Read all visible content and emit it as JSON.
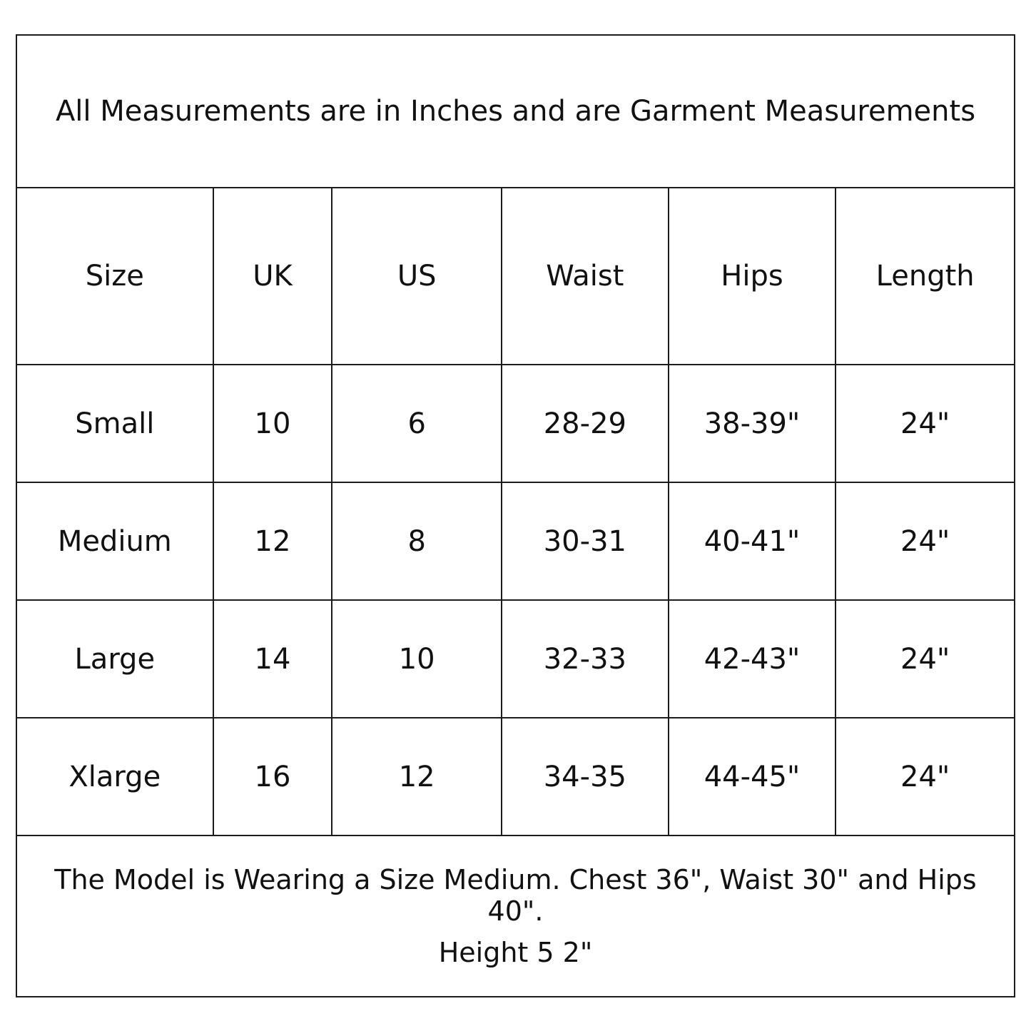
{
  "page": {
    "background": "#ffffff",
    "border_color": "#1c1c1c",
    "text_color": "#111111"
  },
  "caption": {
    "text": "All Measurements are in Inches and are Garment Measurements"
  },
  "size_chart": {
    "columns": [
      "Size",
      "UK",
      "US",
      "Waist",
      "Hips",
      "Length"
    ],
    "rows": [
      {
        "size": "Small",
        "uk": "10",
        "us": "6",
        "waist": "28-29",
        "hips": "38-39\"",
        "length": "24\""
      },
      {
        "size": "Medium",
        "uk": "12",
        "us": "8",
        "waist": "30-31",
        "hips": "40-41\"",
        "length": "24\""
      },
      {
        "size": "Large",
        "uk": "14",
        "us": "10",
        "waist": "32-33",
        "hips": "42-43\"",
        "length": "24\""
      },
      {
        "size": "Xlarge",
        "uk": "16",
        "us": "12",
        "waist": "34-35",
        "hips": "44-45\"",
        "length": "24\""
      }
    ]
  },
  "footer": {
    "line1": "The Model is Wearing a Size Medium. Chest 36\", Waist 30\" and Hips 40\".",
    "line2": "Height 5 2\""
  }
}
